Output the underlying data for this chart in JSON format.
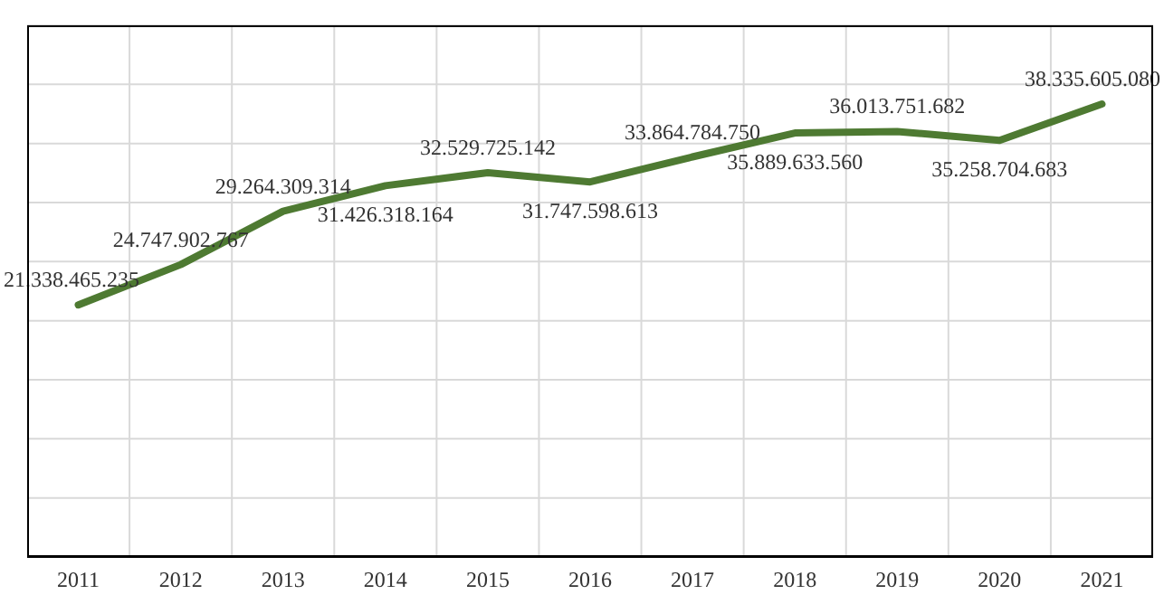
{
  "chart_data": {
    "type": "line",
    "categories": [
      "2011",
      "2012",
      "2013",
      "2014",
      "2015",
      "2016",
      "2017",
      "2018",
      "2019",
      "2020",
      "2021"
    ],
    "series": [
      {
        "color": "#4e7a32",
        "values": [
          21338465235,
          24747902767,
          29264309314,
          31426318164,
          32529725142,
          31747598613,
          33864784750,
          35889633560,
          36013751682,
          35258704683,
          38335605080
        ],
        "value_labels": [
          "21.338.465.235",
          "24.747.902.767",
          "29.264.309.314",
          "31.426.318.164",
          "32.529.725.142",
          "31.747.598.613",
          "33.864.784.750",
          "35.889.633.560",
          "36.013.751.682",
          "35.258.704.683",
          "38.335.605.080"
        ]
      }
    ],
    "ylim": [
      0,
      45000000000
    ],
    "tick_labels": "x",
    "grid": true,
    "marker": "none"
  }
}
